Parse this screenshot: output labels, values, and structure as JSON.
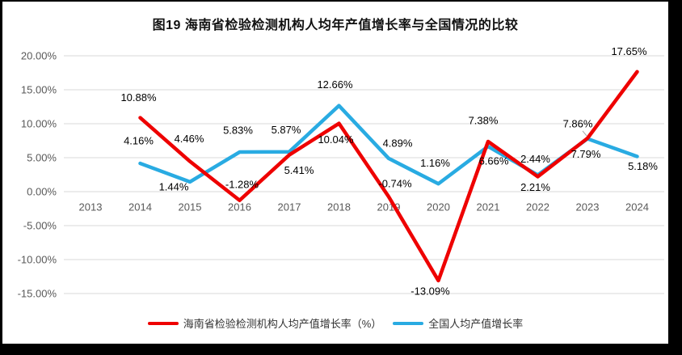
{
  "chart_data": {
    "type": "line",
    "title": "图19  海南省检验检测机构人均年产值增长率与全国情况的比较",
    "categories": [
      "2013",
      "2014",
      "2015",
      "2016",
      "2017",
      "2018",
      "2019",
      "2020",
      "2021",
      "2022",
      "2023",
      "2024"
    ],
    "series": [
      {
        "name": "海南省检验检测机构人均产值增长率（%）",
        "color": "#EE0000",
        "values": [
          null,
          10.88,
          4.46,
          -1.28,
          5.41,
          10.04,
          -0.74,
          -13.09,
          7.38,
          2.21,
          7.86,
          17.65
        ]
      },
      {
        "name": "全国人均产值增长率",
        "color": "#29ABE2",
        "values": [
          null,
          4.16,
          1.44,
          5.83,
          5.87,
          12.66,
          4.89,
          1.16,
          6.66,
          2.44,
          7.79,
          5.18
        ]
      }
    ],
    "data_label_format": "0.00%",
    "y_ticks": [
      20,
      15,
      10,
      5,
      0,
      -5,
      -10,
      -15
    ],
    "y_tick_format": "0.00%",
    "ylim": [
      -15,
      20
    ],
    "grid": true,
    "legend_position": "bottom",
    "colors": {
      "grid": "#D9D9D9",
      "axis_text": "#595959",
      "data_label_text": "#000000",
      "leader_line": "#A6A6A6",
      "background": "#FFFFFF",
      "frame": "#000000"
    }
  }
}
